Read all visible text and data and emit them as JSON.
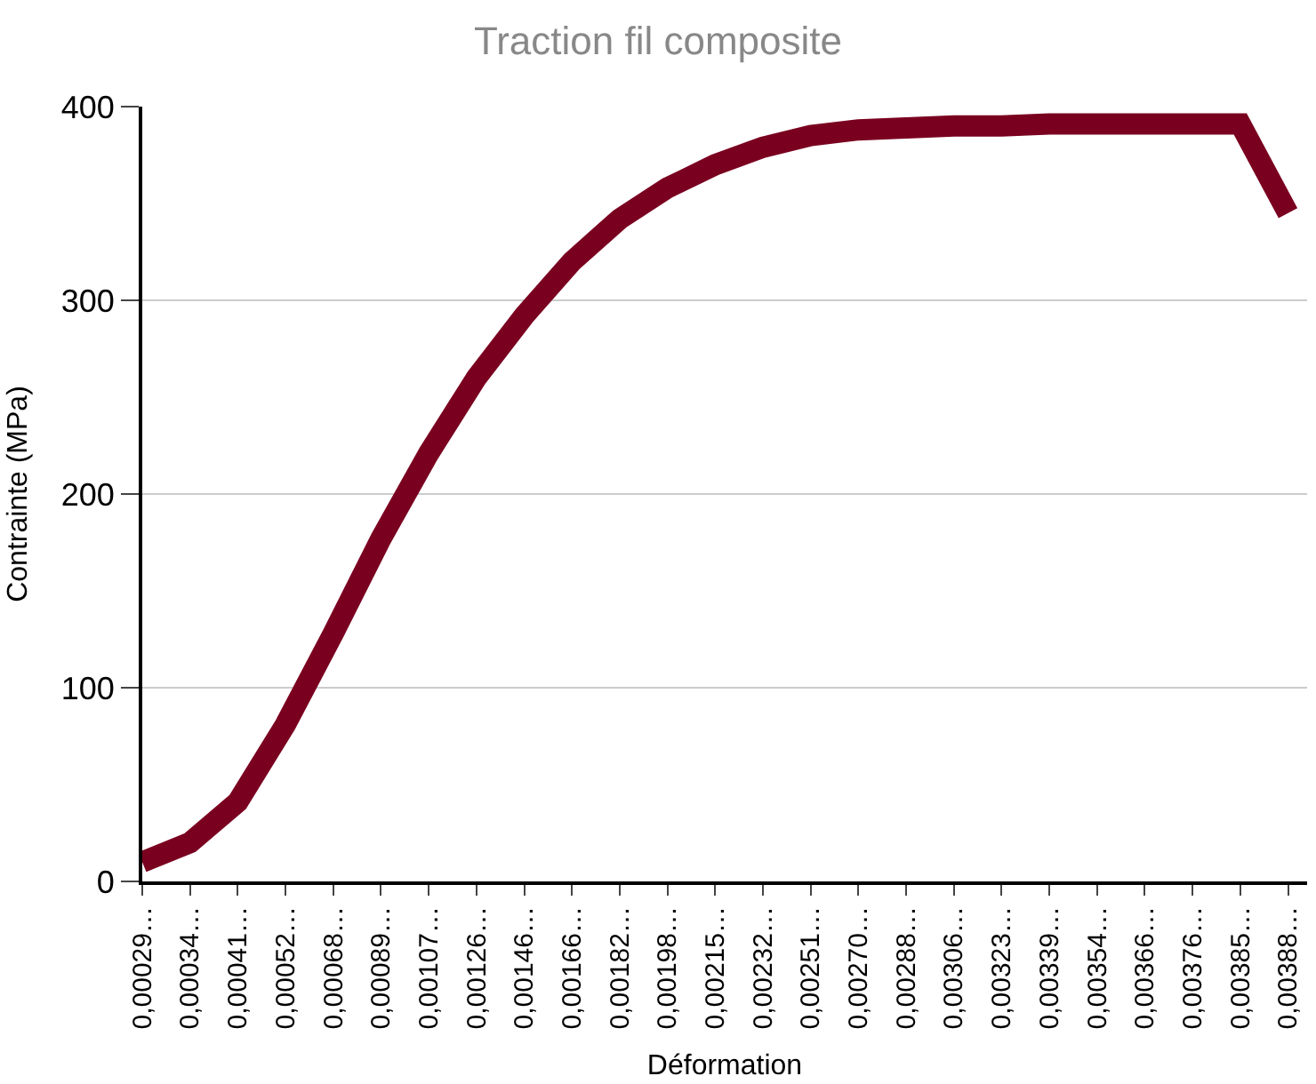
{
  "chart_data": {
    "type": "line",
    "title": "Traction fil composite",
    "xlabel": "Déformation",
    "ylabel": "Contrainte (MPa)",
    "categories": [
      "0,00029…",
      "0,00034…",
      "0,00041…",
      "0,00052…",
      "0,00068…",
      "0,00089…",
      "0,00107…",
      "0,00126…",
      "0,00146…",
      "0,00166…",
      "0,00182…",
      "0,00198…",
      "0,00215…",
      "0,00232…",
      "0,00251…",
      "0,00270…",
      "0,00288…",
      "0,00306…",
      "0,00323…",
      "0,00339…",
      "0,00354…",
      "0,00366…",
      "0,00376…",
      "0,00385…",
      "0,00388…"
    ],
    "series": [
      {
        "color": "#7a0020",
        "values": [
          10,
          20,
          41,
          81,
          128,
          177,
          221,
          260,
          292,
          320,
          342,
          358,
          370,
          379,
          385,
          388,
          389,
          390,
          390,
          391,
          391,
          391,
          391,
          391,
          345
        ]
      }
    ],
    "ylim": [
      0,
      400
    ],
    "yticks": [
      0,
      100,
      200,
      300,
      400
    ],
    "grid": "y",
    "marker": "none",
    "line_style": "solid"
  }
}
